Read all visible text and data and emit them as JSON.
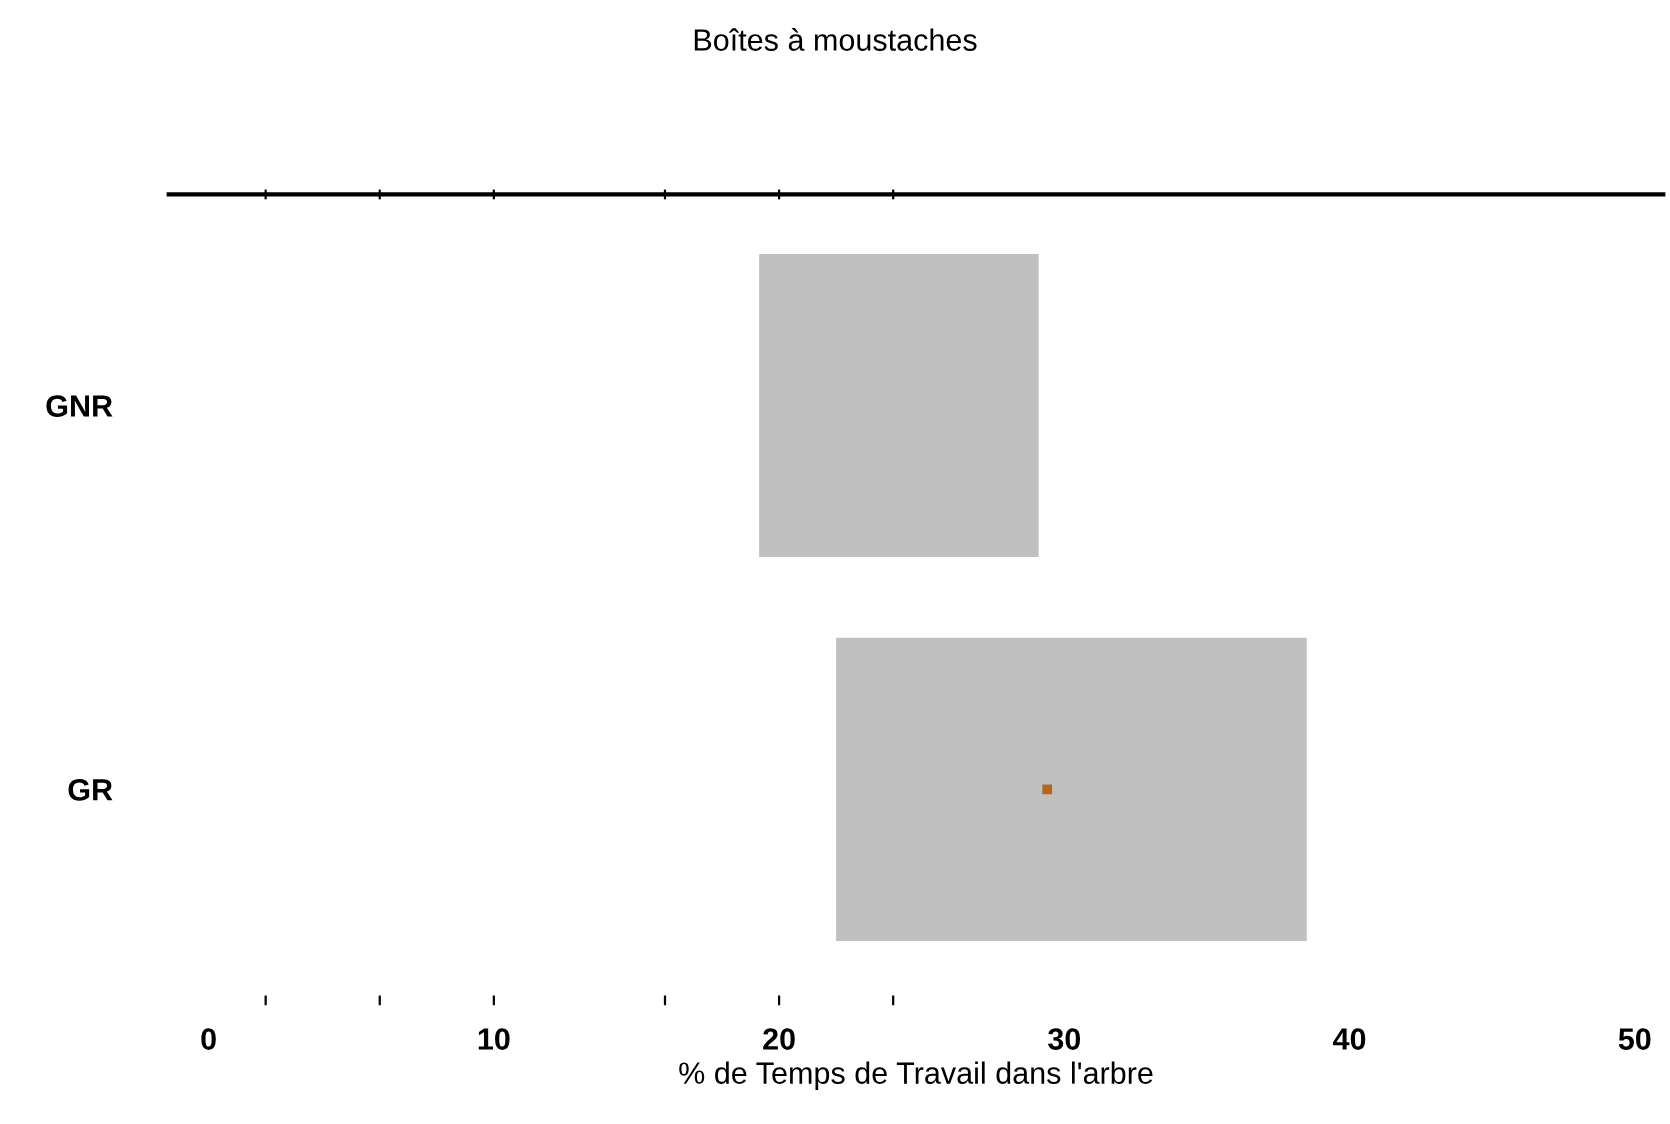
{
  "chart_data": {
    "type": "bar",
    "orientation": "horizontal",
    "title": "Boîtes à moustaches",
    "xlabel": "% de Temps de Travail dans l'arbre",
    "categories": [
      "GNR",
      "GR"
    ],
    "base": [
      19.3,
      22.0
    ],
    "values": [
      9.8,
      16.5
    ],
    "color": "#c0c0c0",
    "series": [
      {
        "type": "scatter",
        "color": "#b5651d",
        "values": [
          null,
          29.4
        ]
      }
    ],
    "xlim": [
      -1.4,
      51
    ],
    "xticks": [
      0,
      {
        "value": 2,
        "label": null
      },
      {
        "value": 6,
        "label": null
      },
      10,
      {
        "value": 16,
        "label": null
      },
      20,
      {
        "value": 24,
        "label": null
      },
      30,
      40,
      50
    ],
    "grid": false,
    "marker": "square"
  }
}
